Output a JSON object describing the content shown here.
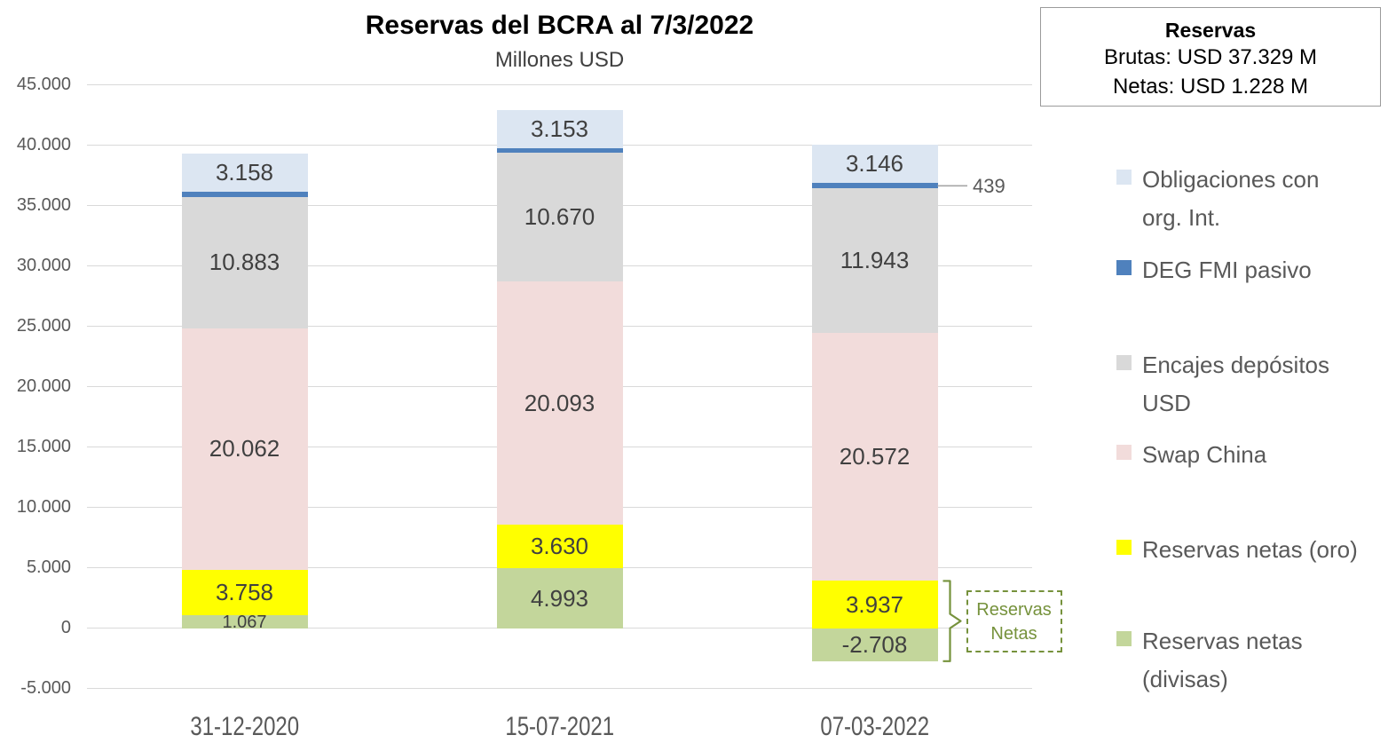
{
  "info_box": {
    "title": "Reservas",
    "lines": [
      "Brutas: USD 37.329 M",
      "Netas: USD 1.228 M"
    ]
  },
  "annotations": {
    "deg_value_label": "439",
    "netas_box": {
      "line1": "Reservas",
      "line2": "Netas"
    }
  },
  "legend": {
    "position": "right",
    "items": [
      {
        "label": "Obligaciones con org. Int.",
        "color": "#dce6f2"
      },
      {
        "label": "DEG FMI pasivo",
        "color": "#4f81bd"
      },
      {
        "label": "Encajes depósitos USD",
        "color": "#d9d9d9"
      },
      {
        "label": "Swap China",
        "color": "#f2dcdb"
      },
      {
        "label": "Reservas netas (oro)",
        "color": "#ffff00"
      },
      {
        "label": "Reservas netas (divisas)",
        "color": "#c3d69b"
      }
    ]
  },
  "chart_data": {
    "type": "bar",
    "stacked": true,
    "title": "Reservas del BCRA al 7/3/2022",
    "subtitle": "Millones USD",
    "xlabel": "",
    "ylabel": "",
    "grid": true,
    "legend_position": "right",
    "categories": [
      "31-12-2020",
      "15-07-2021",
      "07-03-2022"
    ],
    "series": [
      {
        "name": "Reservas netas (divisas)",
        "color": "#c3d69b",
        "values": [
          1067,
          4993,
          -2708
        ],
        "labels": [
          "1.067",
          "4.993",
          "-2.708"
        ]
      },
      {
        "name": "Reservas netas (oro)",
        "color": "#ffff00",
        "values": [
          3758,
          3630,
          3937
        ],
        "labels": [
          "3.758",
          "3.630",
          "3.937"
        ]
      },
      {
        "name": "Swap China",
        "color": "#f2dcdb",
        "values": [
          20062,
          20093,
          20572
        ],
        "labels": [
          "20.062",
          "20.093",
          "20.572"
        ]
      },
      {
        "name": "Encajes depósitos USD",
        "color": "#d9d9d9",
        "values": [
          10883,
          10670,
          11943
        ],
        "labels": [
          "10.883",
          "10.670",
          "11.943"
        ]
      },
      {
        "name": "DEG FMI pasivo",
        "color": "#4f81bd",
        "values": [
          400,
          380,
          439
        ],
        "labels": [
          "",
          "",
          ""
        ]
      },
      {
        "name": "Obligaciones con org. Int.",
        "color": "#dce6f2",
        "values": [
          3158,
          3153,
          3146
        ],
        "labels": [
          "3.158",
          "3.153",
          "3.146"
        ]
      }
    ],
    "ylim": [
      -5000,
      45000
    ],
    "yticks": [
      45000,
      40000,
      35000,
      30000,
      25000,
      20000,
      15000,
      10000,
      5000,
      0,
      -5000
    ],
    "ytick_labels": [
      "45.000",
      "40.000",
      "35.000",
      "30.000",
      "25.000",
      "20.000",
      "15.000",
      "10.000",
      "5.000",
      "0",
      "-5.000"
    ]
  }
}
